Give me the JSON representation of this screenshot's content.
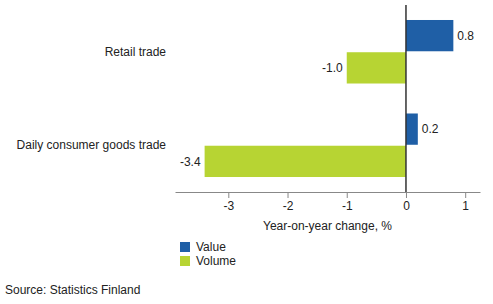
{
  "chart_data": {
    "type": "bar",
    "orientation": "horizontal",
    "categories": [
      "Retail trade",
      "Daily consumer goods trade"
    ],
    "series": [
      {
        "name": "Value",
        "color": "#1f5fa6",
        "values": [
          0.8,
          0.2
        ],
        "value_labels": [
          "0.8",
          "0.2"
        ]
      },
      {
        "name": "Volume",
        "color": "#b7d433",
        "values": [
          -1.0,
          -3.4
        ],
        "value_labels": [
          "-1.0",
          "-3.4"
        ]
      }
    ],
    "x_label": "Year-on-year change, %",
    "xlim": [
      -3.9,
      1.25
    ],
    "xticks": [
      -3,
      -2,
      -1,
      0,
      1
    ],
    "grid": false,
    "data_labels": true,
    "legend": "bottom-left",
    "source": "Source: Statistics Finland"
  }
}
